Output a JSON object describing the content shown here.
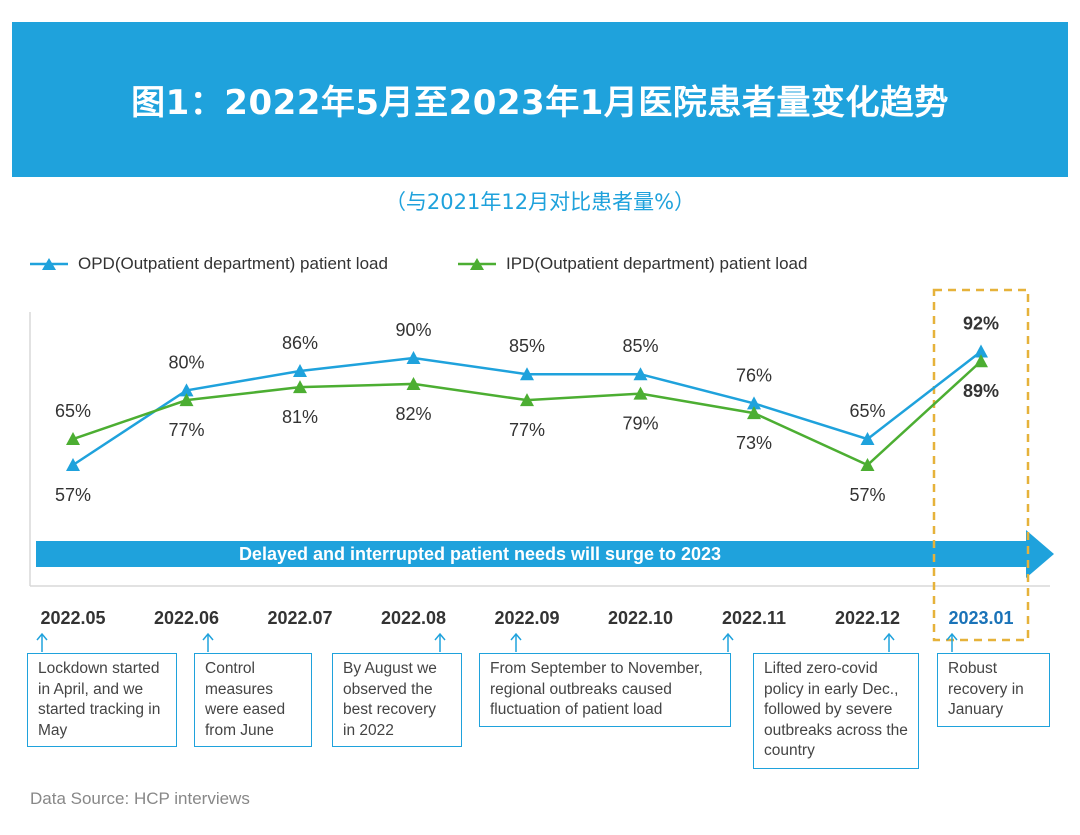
{
  "header": {
    "title": "图1：2022年5月至2023年1月医院患者量变化趋势",
    "subtitle": "（与2021年12月对比患者量%）",
    "banner_color": "#1fa2dc"
  },
  "banner_arrow": {
    "text": "Delayed and interrupted patient needs will surge to 2023",
    "color": "#1fa2dc"
  },
  "highlight": {
    "category": "2023.01",
    "color": "#e6b23a",
    "style": "dashed-box"
  },
  "chart_data": {
    "type": "line",
    "categories": [
      "2022.05",
      "2022.06",
      "2022.07",
      "2022.08",
      "2022.09",
      "2022.10",
      "2022.11",
      "2022.12",
      "2023.01"
    ],
    "series": [
      {
        "name": "OPD(Outpatient department) patient load",
        "color": "#1fa2dc",
        "values": [
          57,
          80,
          86,
          90,
          85,
          85,
          76,
          65,
          92
        ],
        "labels": [
          "57%",
          "80%",
          "86%",
          "90%",
          "85%",
          "85%",
          "76%",
          "65%",
          "92%"
        ]
      },
      {
        "name": "IPD(Outpatient department) patient load",
        "color": "#4cae32",
        "values": [
          65,
          77,
          81,
          82,
          77,
          79,
          73,
          57,
          89
        ],
        "labels": [
          "65%",
          "77%",
          "81%",
          "82%",
          "77%",
          "79%",
          "73%",
          "57%",
          "89%"
        ]
      }
    ],
    "marker": "triangle",
    "grid": false,
    "legend_position": "top-left"
  },
  "notes": [
    {
      "category": "2022.05",
      "text": "Lockdown started in April, and we started tracking in May"
    },
    {
      "category": "2022.06",
      "text": "Control measures were eased from June"
    },
    {
      "category": "2022.08",
      "text": "By August we observed the best recovery in 2022"
    },
    {
      "category": "2022.09",
      "text": "From September to November, regional outbreaks caused fluctuation of patient load"
    },
    {
      "category": "2022.12",
      "text": "Lifted zero-covid policy in early Dec., followed by severe outbreaks across the country"
    },
    {
      "category": "2023.01",
      "text": "Robust recovery in January"
    }
  ],
  "source": "Data Source: HCP interviews"
}
